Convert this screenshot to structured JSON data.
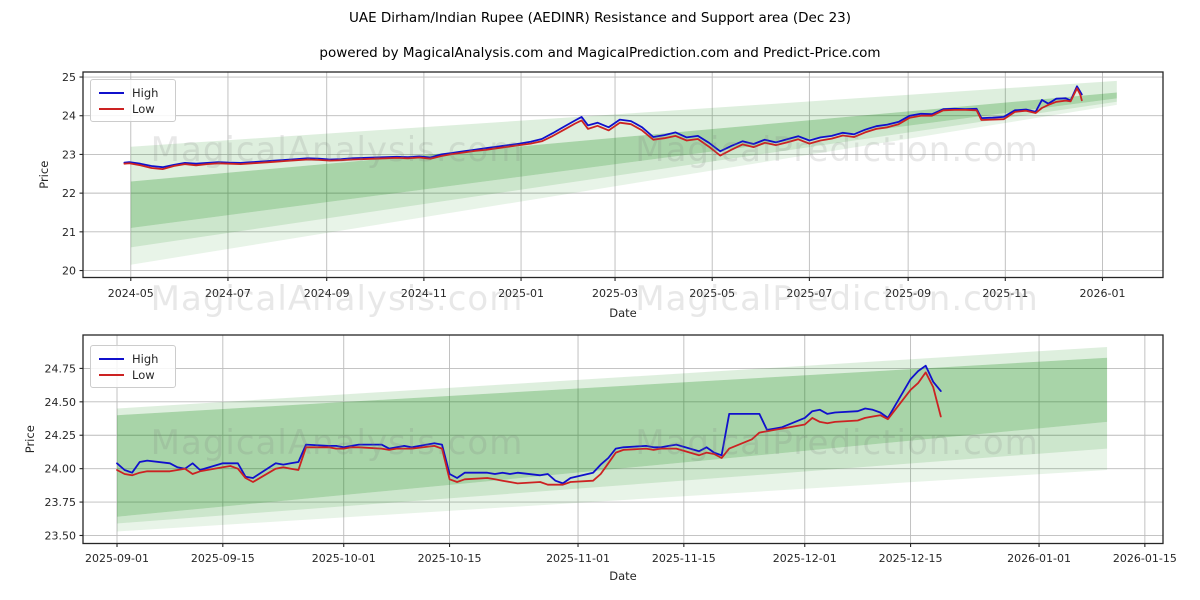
{
  "title": "UAE Dirham/Indian Rupee (AEDINR) Resistance and Support area (Dec 23)",
  "subtitle": "powered by MagicalAnalysis.com and MagicalPrediction.com and Predict-Price.com",
  "watermarks": {
    "left": "MagicalAnalysis.com",
    "right": "MagicalPrediction.com"
  },
  "legend": {
    "high_label": "High",
    "low_label": "Low"
  },
  "colors": {
    "high": "#1010cc",
    "low": "#cc2222",
    "band": "#008000",
    "grid": "#bbbbbb",
    "spine": "#262626",
    "tick_text": "#262626"
  },
  "chart_data": [
    {
      "type": "line",
      "title": "",
      "xlabel": "Date",
      "ylabel": "Price",
      "xlim_days": [
        -30,
        648
      ],
      "ylim": [
        19.82,
        25.13
      ],
      "grid": true,
      "legend_position": "upper left",
      "x_ticks": [
        {
          "d": 0,
          "label": "2024-05"
        },
        {
          "d": 61,
          "label": "2024-07"
        },
        {
          "d": 123,
          "label": "2024-09"
        },
        {
          "d": 184,
          "label": "2024-11"
        },
        {
          "d": 245,
          "label": "2025-01"
        },
        {
          "d": 304,
          "label": "2025-03"
        },
        {
          "d": 365,
          "label": "2025-05"
        },
        {
          "d": 426,
          "label": "2025-07"
        },
        {
          "d": 488,
          "label": "2025-09"
        },
        {
          "d": 549,
          "label": "2025-11"
        },
        {
          "d": 610,
          "label": "2026-01"
        }
      ],
      "y_ticks": [
        {
          "v": 20,
          "label": "20"
        },
        {
          "v": 21,
          "label": "21"
        },
        {
          "v": 22,
          "label": "22"
        },
        {
          "v": 23,
          "label": "23"
        },
        {
          "v": 24,
          "label": "24"
        },
        {
          "v": 25,
          "label": "25"
        }
      ],
      "bands": {
        "x": [
          0,
          619
        ],
        "boundaries": [
          [
            23.2,
            24.9
          ],
          [
            22.3,
            24.6
          ],
          [
            21.1,
            24.45
          ],
          [
            20.6,
            24.36
          ],
          [
            20.15,
            24.28
          ]
        ],
        "opacities": [
          0.13,
          0.34,
          0.2,
          0.09
        ]
      },
      "series": [
        {
          "name": "High",
          "color_key": "high",
          "x": [
            -4,
            -1,
            6,
            13,
            20,
            27,
            34,
            41,
            48,
            55,
            62,
            69,
            76,
            83,
            90,
            97,
            104,
            111,
            118,
            125,
            132,
            139,
            146,
            153,
            160,
            167,
            174,
            181,
            188,
            195,
            202,
            209,
            216,
            223,
            230,
            237,
            244,
            251,
            258,
            265,
            272,
            279,
            283,
            287,
            293,
            300,
            307,
            314,
            321,
            328,
            335,
            342,
            349,
            356,
            363,
            370,
            377,
            384,
            391,
            398,
            405,
            412,
            419,
            426,
            433,
            440,
            447,
            454,
            461,
            468,
            475,
            482,
            489,
            496,
            503,
            510,
            517,
            524,
            531,
            534,
            541,
            548,
            555,
            562,
            568,
            572,
            576,
            581,
            587,
            590,
            594,
            596,
            597
          ],
          "values": [
            22.79,
            22.8,
            22.76,
            22.7,
            22.67,
            22.73,
            22.78,
            22.76,
            22.78,
            22.8,
            22.79,
            22.78,
            22.8,
            22.82,
            22.84,
            22.86,
            22.88,
            22.9,
            22.89,
            22.87,
            22.88,
            22.9,
            22.91,
            22.92,
            22.93,
            22.94,
            22.93,
            22.95,
            22.92,
            23.0,
            23.04,
            23.08,
            23.12,
            23.16,
            23.2,
            23.24,
            23.28,
            23.33,
            23.4,
            23.55,
            23.72,
            23.88,
            23.97,
            23.75,
            23.82,
            23.7,
            23.9,
            23.86,
            23.7,
            23.45,
            23.5,
            23.57,
            23.44,
            23.48,
            23.3,
            23.08,
            23.22,
            23.34,
            23.27,
            23.38,
            23.31,
            23.39,
            23.47,
            23.36,
            23.44,
            23.48,
            23.56,
            23.52,
            23.64,
            23.73,
            23.77,
            23.84,
            24.0,
            24.05,
            24.04,
            24.17,
            24.18,
            24.17,
            24.18,
            23.94,
            23.95,
            23.97,
            24.14,
            24.16,
            24.1,
            24.41,
            24.31,
            24.44,
            24.45,
            24.39,
            24.76,
            24.62,
            24.55
          ]
        },
        {
          "name": "Low",
          "color_key": "low",
          "x": [
            -4,
            -1,
            6,
            13,
            20,
            27,
            34,
            41,
            48,
            55,
            62,
            69,
            76,
            83,
            90,
            97,
            104,
            111,
            118,
            125,
            132,
            139,
            146,
            153,
            160,
            167,
            174,
            181,
            188,
            195,
            202,
            209,
            216,
            223,
            230,
            237,
            244,
            251,
            258,
            265,
            272,
            279,
            283,
            287,
            293,
            300,
            307,
            314,
            321,
            328,
            335,
            342,
            349,
            356,
            363,
            370,
            377,
            384,
            391,
            398,
            405,
            412,
            419,
            426,
            433,
            440,
            447,
            454,
            461,
            468,
            475,
            482,
            489,
            496,
            503,
            510,
            517,
            524,
            531,
            534,
            541,
            548,
            555,
            562,
            568,
            572,
            576,
            581,
            587,
            590,
            594,
            596,
            597
          ],
          "values": [
            22.76,
            22.77,
            22.72,
            22.65,
            22.62,
            22.7,
            22.75,
            22.72,
            22.75,
            22.77,
            22.76,
            22.75,
            22.77,
            22.79,
            22.81,
            22.83,
            22.85,
            22.87,
            22.86,
            22.84,
            22.85,
            22.87,
            22.88,
            22.89,
            22.9,
            22.91,
            22.9,
            22.92,
            22.89,
            22.96,
            23.01,
            23.05,
            23.09,
            23.12,
            23.16,
            23.2,
            23.24,
            23.28,
            23.34,
            23.48,
            23.64,
            23.8,
            23.88,
            23.66,
            23.74,
            23.62,
            23.82,
            23.78,
            23.62,
            23.38,
            23.42,
            23.48,
            23.36,
            23.4,
            23.2,
            22.97,
            23.12,
            23.26,
            23.19,
            23.3,
            23.24,
            23.31,
            23.39,
            23.28,
            23.36,
            23.41,
            23.49,
            23.45,
            23.57,
            23.66,
            23.7,
            23.78,
            23.95,
            24.0,
            24.0,
            24.14,
            24.15,
            24.15,
            24.14,
            23.89,
            23.9,
            23.91,
            24.1,
            24.13,
            24.07,
            24.2,
            24.28,
            24.36,
            24.39,
            24.37,
            24.71,
            24.55,
            24.4
          ]
        }
      ]
    },
    {
      "type": "line",
      "title": "",
      "xlabel": "Date",
      "ylabel": "Price",
      "xlim_days": [
        -4.5,
        138.4
      ],
      "ylim": [
        23.44,
        25.0
      ],
      "grid": true,
      "legend_position": "upper left",
      "x_ticks": [
        {
          "d": 0,
          "label": "2025-09-01"
        },
        {
          "d": 14,
          "label": "2025-09-15"
        },
        {
          "d": 30,
          "label": "2025-10-01"
        },
        {
          "d": 44,
          "label": "2025-10-15"
        },
        {
          "d": 61,
          "label": "2025-11-01"
        },
        {
          "d": 75,
          "label": "2025-11-15"
        },
        {
          "d": 91,
          "label": "2025-12-01"
        },
        {
          "d": 105,
          "label": "2025-12-15"
        },
        {
          "d": 122,
          "label": "2026-01-01"
        },
        {
          "d": 136,
          "label": "2026-01-15"
        }
      ],
      "y_ticks": [
        {
          "v": 23.5,
          "label": "23.50"
        },
        {
          "v": 23.75,
          "label": "23.75"
        },
        {
          "v": 24.0,
          "label": "24.00"
        },
        {
          "v": 24.25,
          "label": "24.25"
        },
        {
          "v": 24.5,
          "label": "24.50"
        },
        {
          "v": 24.75,
          "label": "24.75"
        }
      ],
      "bands": {
        "x": [
          0,
          131
        ],
        "boundaries": [
          [
            24.45,
            24.91
          ],
          [
            24.4,
            24.83
          ],
          [
            23.64,
            24.35
          ],
          [
            23.59,
            24.15
          ],
          [
            23.53,
            23.99
          ]
        ],
        "opacities": [
          0.13,
          0.34,
          0.2,
          0.09
        ]
      },
      "series": [
        {
          "name": "High",
          "color_key": "high",
          "x": [
            0,
            1,
            2,
            3,
            4,
            7,
            8,
            9,
            10,
            11,
            14,
            15,
            16,
            17,
            18,
            21,
            22,
            23,
            24,
            25,
            28,
            29,
            30,
            31,
            32,
            35,
            36,
            37,
            38,
            39,
            42,
            43,
            44,
            45,
            46,
            49,
            50,
            51,
            52,
            53,
            56,
            57,
            58,
            59,
            60,
            63,
            64,
            65,
            66,
            67,
            70,
            71,
            72,
            73,
            74,
            77,
            78,
            79,
            80,
            81,
            84,
            85,
            86,
            87,
            88,
            91,
            92,
            93,
            94,
            95,
            98,
            99,
            100,
            101,
            102,
            105,
            106,
            107,
            108,
            109
          ],
          "values": [
            24.04,
            23.99,
            23.97,
            24.05,
            24.06,
            24.04,
            24.01,
            24.0,
            24.04,
            23.99,
            24.04,
            24.04,
            24.04,
            23.94,
            23.93,
            24.04,
            24.03,
            24.04,
            24.05,
            24.18,
            24.17,
            24.17,
            24.16,
            24.17,
            24.18,
            24.18,
            24.15,
            24.16,
            24.17,
            24.16,
            24.19,
            24.18,
            23.96,
            23.93,
            23.97,
            23.97,
            23.96,
            23.97,
            23.96,
            23.97,
            23.95,
            23.96,
            23.91,
            23.89,
            23.93,
            23.97,
            24.03,
            24.08,
            24.15,
            24.16,
            24.17,
            24.16,
            24.16,
            24.17,
            24.18,
            24.13,
            24.16,
            24.12,
            24.1,
            24.41,
            24.41,
            24.41,
            24.29,
            24.3,
            24.31,
            24.38,
            24.43,
            24.44,
            24.41,
            24.42,
            24.43,
            24.45,
            24.44,
            24.42,
            24.38,
            24.67,
            24.73,
            24.77,
            24.65,
            24.58
          ]
        },
        {
          "name": "Low",
          "color_key": "low",
          "x": [
            0,
            1,
            2,
            3,
            4,
            7,
            8,
            9,
            10,
            11,
            14,
            15,
            16,
            17,
            18,
            21,
            22,
            23,
            24,
            25,
            28,
            29,
            30,
            31,
            32,
            35,
            36,
            37,
            38,
            39,
            42,
            43,
            44,
            45,
            46,
            49,
            50,
            51,
            52,
            53,
            56,
            57,
            58,
            59,
            60,
            63,
            64,
            65,
            66,
            67,
            70,
            71,
            72,
            73,
            74,
            77,
            78,
            79,
            80,
            81,
            84,
            85,
            86,
            87,
            88,
            91,
            92,
            93,
            94,
            95,
            98,
            99,
            100,
            101,
            102,
            105,
            106,
            107,
            108,
            109
          ],
          "values": [
            23.99,
            23.96,
            23.95,
            23.97,
            23.98,
            23.98,
            23.99,
            24.0,
            23.96,
            23.98,
            24.01,
            24.02,
            24.0,
            23.93,
            23.9,
            24.0,
            24.01,
            24.0,
            23.99,
            24.16,
            24.16,
            24.15,
            24.15,
            24.16,
            24.16,
            24.15,
            24.14,
            24.15,
            24.15,
            24.15,
            24.17,
            24.15,
            23.92,
            23.9,
            23.92,
            23.93,
            23.92,
            23.91,
            23.9,
            23.89,
            23.9,
            23.88,
            23.88,
            23.88,
            23.9,
            23.91,
            23.96,
            24.04,
            24.12,
            24.14,
            24.15,
            24.14,
            24.15,
            24.15,
            24.15,
            24.1,
            24.12,
            24.11,
            24.08,
            24.15,
            24.22,
            24.27,
            24.28,
            24.29,
            24.3,
            24.33,
            24.38,
            24.35,
            24.34,
            24.35,
            24.36,
            24.38,
            24.39,
            24.4,
            24.37,
            24.59,
            24.64,
            24.72,
            24.61,
            24.39
          ]
        }
      ]
    }
  ]
}
